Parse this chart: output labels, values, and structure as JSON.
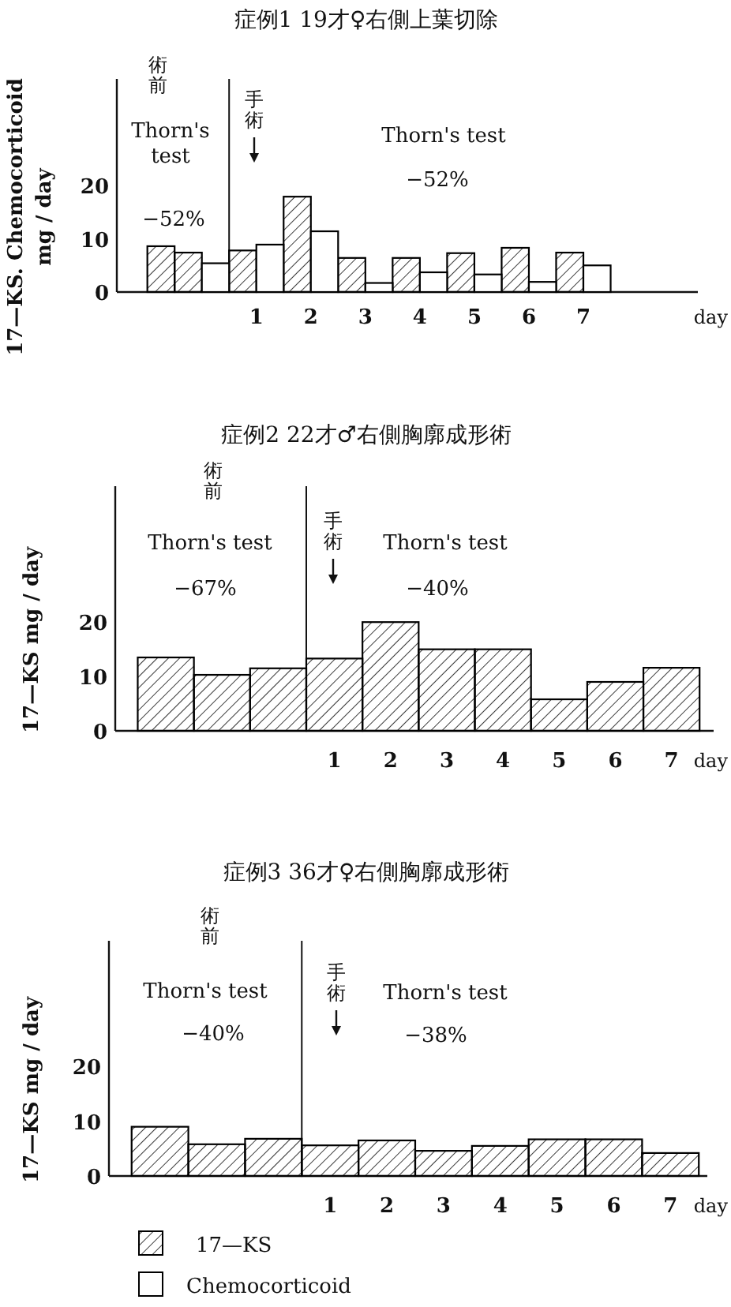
{
  "chart_data": [
    {
      "type": "bar",
      "title": "症例1 19才♀右側上葉切除",
      "ylabel": "17—KS. Chemocorticoid\nmg / day",
      "xlabel": "day",
      "series": [
        {
          "name": "17—KS",
          "color": "#000000",
          "x": [
            -0.75,
            -0.25,
            0.75,
            1.75,
            2.75,
            3.75,
            4.75,
            5.75,
            6.75
          ],
          "values": [
            8.6,
            7.4,
            7.8,
            17.9,
            6.4,
            6.4,
            7.3,
            8.3,
            7.4
          ]
        },
        {
          "name": "Chemocorticoid",
          "color": "#000000",
          "x": [
            0.25,
            1.25,
            2.25,
            3.25,
            4.25,
            5.25,
            6.25,
            7.25
          ],
          "values": [
            5.4,
            8.9,
            11.4,
            1.7,
            3.7,
            3.3,
            1.9,
            5.0
          ]
        }
      ],
      "xlim": [
        -1.56,
        9.1
      ],
      "xticks": [
        1,
        2,
        3,
        4,
        5,
        6,
        7
      ],
      "ylim": [
        0,
        40
      ],
      "yticks": [
        0,
        10,
        20
      ],
      "ref_lines": [
        {
          "axis": "x",
          "value": 0.5
        }
      ],
      "annotations": [
        "術前",
        "Thorn's test",
        "−52%",
        "手術",
        "Thorn's test",
        "−52%"
      ],
      "legend": "bottom",
      "grid": false
    },
    {
      "type": "bar",
      "title": "症例2 22才♂右側胸廓成形術",
      "ylabel": "17—KS mg / day",
      "xlabel": "day",
      "series": [
        {
          "color": "#000000",
          "x": [
            -2,
            -1,
            0,
            1,
            2,
            3,
            4,
            5,
            6,
            7
          ],
          "values": [
            13.5,
            10.3,
            11.5,
            13.3,
            20,
            15,
            15,
            5.8,
            9,
            11.6
          ]
        }
      ],
      "xlim": [
        -2.9,
        7.75
      ],
      "xticks": [
        1,
        2,
        3,
        4,
        5,
        6,
        7
      ],
      "ylim": [
        0,
        45
      ],
      "yticks": [
        0,
        10,
        20
      ],
      "ref_lines": [
        {
          "axis": "x",
          "value": 0.5
        }
      ],
      "annotations": [
        "術前",
        "Thorn's test",
        "−67%",
        "手術",
        "Thorn's test",
        "−40%"
      ],
      "grid": false
    },
    {
      "type": "bar",
      "title": "症例3 36才♀右側胸廓成形術",
      "ylabel": "17—KS mg / day",
      "xlabel": "day",
      "series": [
        {
          "color": "#000000",
          "x": [
            -2,
            -1,
            0,
            1,
            2,
            3,
            4,
            5,
            6,
            7
          ],
          "values": [
            9,
            5.8,
            6.8,
            5.6,
            6.5,
            4.6,
            5.5,
            6.7,
            6.7,
            4.2
          ]
        }
      ],
      "xlim": [
        -2.9,
        7.65
      ],
      "xticks": [
        1,
        2,
        3,
        4,
        5,
        6,
        7
      ],
      "ylim": [
        0,
        43
      ],
      "yticks": [
        0,
        10,
        20
      ],
      "ref_lines": [
        {
          "axis": "x",
          "value": 0.5
        }
      ],
      "annotations": [
        "術前",
        "Thorn's test",
        "−40%",
        "手術",
        "Thorn's test",
        "−38%"
      ],
      "grid": false
    }
  ]
}
